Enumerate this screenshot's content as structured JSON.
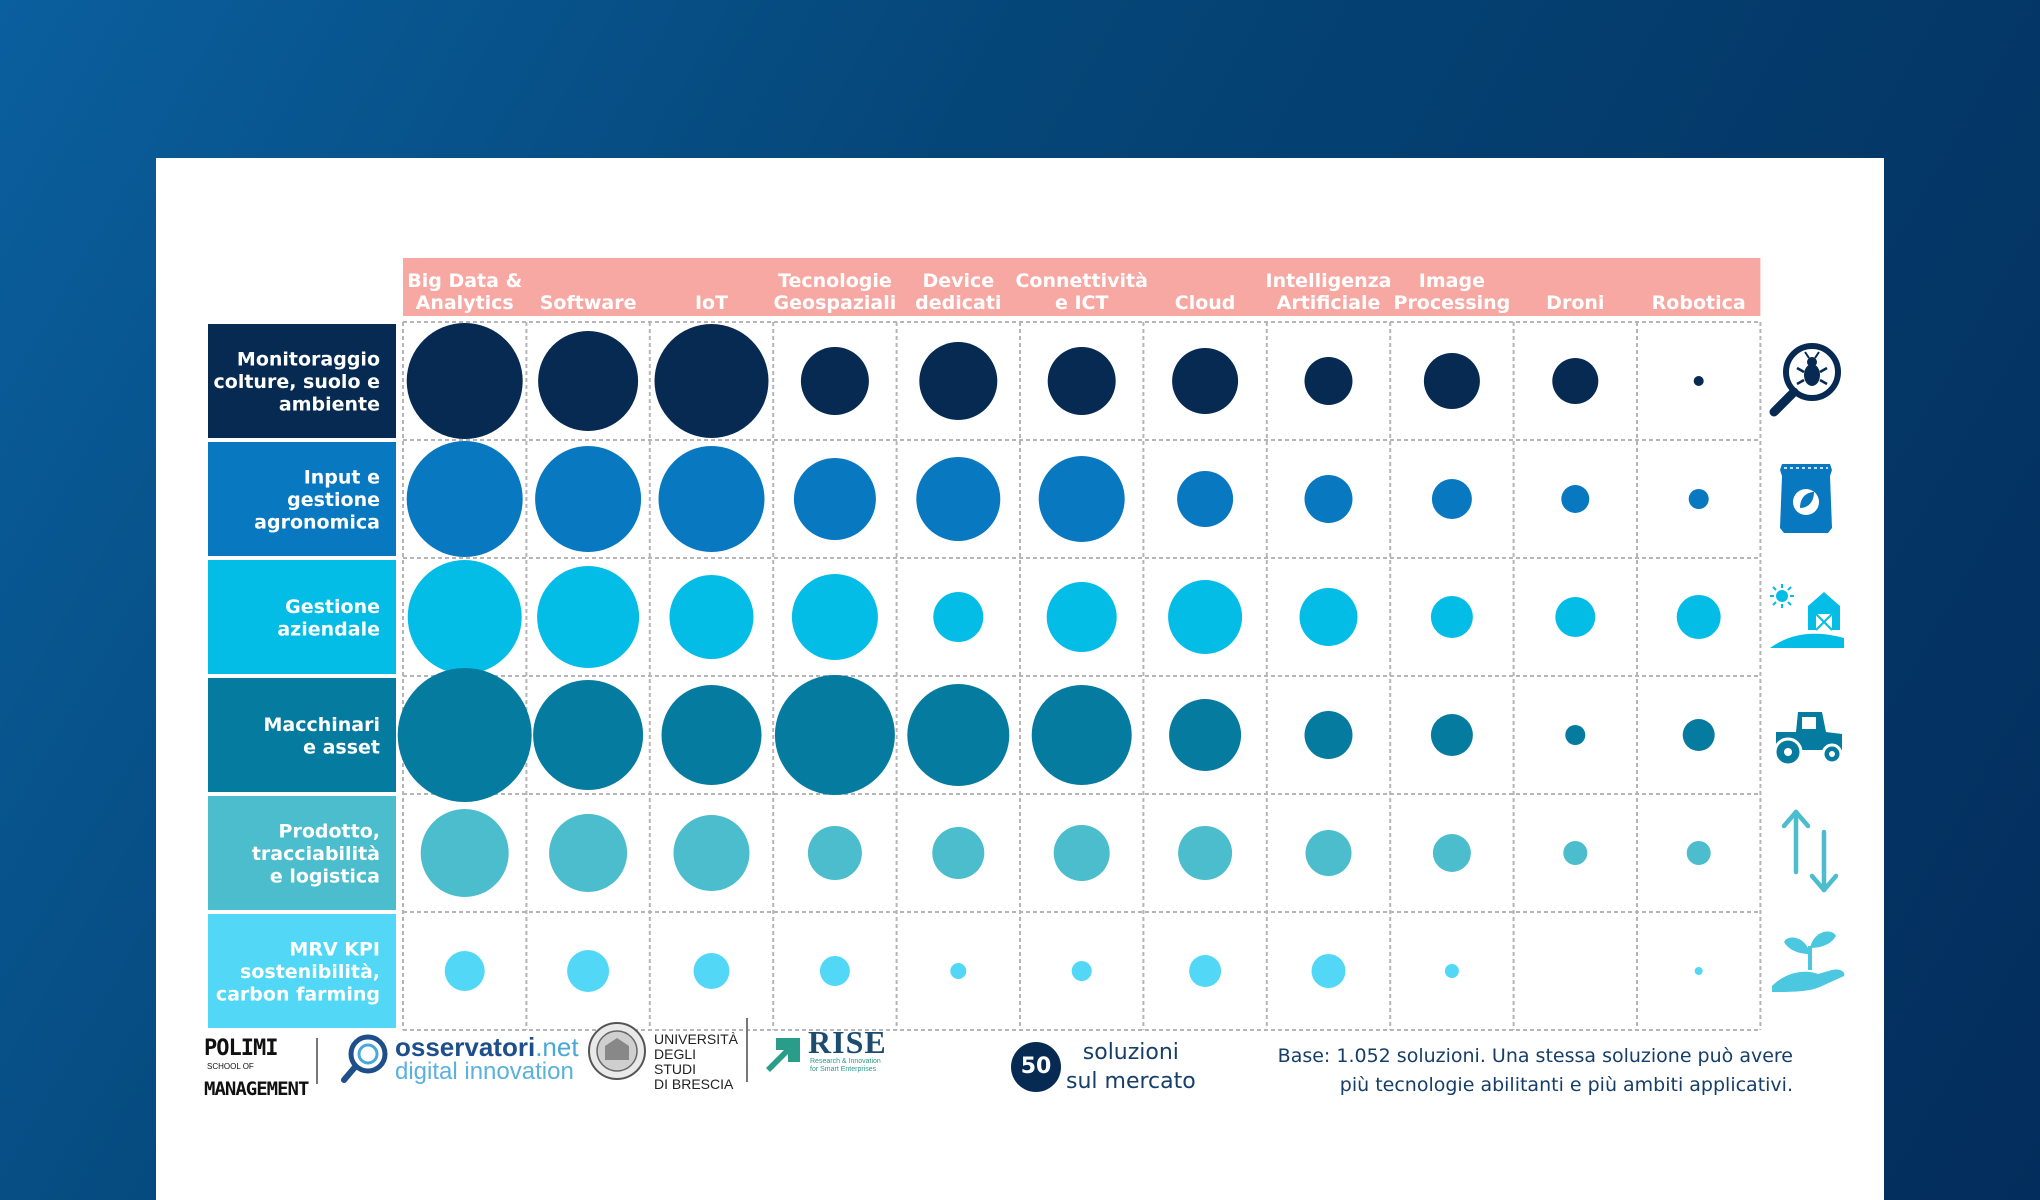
{
  "chart_data": {
    "type": "bubble-matrix",
    "title": "",
    "columns": [
      "Big Data & Analytics",
      "Software",
      "IoT",
      "Tecnologie Geospaziali",
      "Device dedicati",
      "Connettività e ICT",
      "Cloud",
      "Intelligenza Artificiale",
      "Image Processing",
      "Droni",
      "Robotica"
    ],
    "column_lines": [
      [
        "Big Data &",
        "Analytics"
      ],
      [
        "Software"
      ],
      [
        "IoT"
      ],
      [
        "Tecnologie",
        "Geospaziali"
      ],
      [
        "Device",
        "dedicati"
      ],
      [
        "Connettività",
        "e ICT"
      ],
      [
        "Cloud"
      ],
      [
        "Intelligenza",
        "Artificiale"
      ],
      [
        "Image",
        "Processing"
      ],
      [
        "Droni"
      ],
      [
        "Robotica"
      ]
    ],
    "rows": [
      {
        "name": "Monitoraggio colture, suolo e ambiente",
        "lines": [
          "Monitoraggio",
          "colture, suolo e",
          "ambiente"
        ],
        "color": "#062a52",
        "icon": "bug-magnifier-icon",
        "values": [
          58,
          50,
          57,
          34,
          39,
          34,
          33,
          24,
          28,
          23,
          5
        ]
      },
      {
        "name": "Input e gestione agronomica",
        "lines": [
          "Input e",
          "gestione",
          "agronomica"
        ],
        "color": "#0878c0",
        "icon": "fertilizer-bag-icon",
        "values": [
          58,
          53,
          53,
          41,
          42,
          43,
          28,
          24,
          20,
          14,
          10
        ]
      },
      {
        "name": "Gestione aziendale",
        "lines": [
          "Gestione",
          "aziendale"
        ],
        "color": "#03bde6",
        "icon": "farm-barn-icon",
        "values": [
          57,
          51,
          42,
          43,
          25,
          35,
          37,
          29,
          21,
          20,
          22
        ]
      },
      {
        "name": "Macchinari e asset",
        "lines": [
          "Macchinari",
          "e asset"
        ],
        "color": "#067ba0",
        "icon": "tractor-icon",
        "values": [
          67,
          55,
          50,
          60,
          51,
          50,
          36,
          24,
          21,
          10,
          16
        ]
      },
      {
        "name": "Prodotto, tracciabilità e logistica",
        "lines": [
          "Prodotto,",
          "tracciabilità",
          "e logistica"
        ],
        "color": "#4bbdcc",
        "icon": "up-down-arrows-icon",
        "values": [
          44,
          39,
          38,
          27,
          26,
          28,
          27,
          23,
          19,
          12,
          12
        ]
      },
      {
        "name": "MRV KPI sostenibilità, carbon farming",
        "lines": [
          "MRV KPI",
          "sostenibilità,",
          "carbon farming"
        ],
        "color": "#52d8f6",
        "icon": "plant-hand-icon",
        "values": [
          20,
          21,
          18,
          15,
          8,
          10,
          16,
          17,
          7,
          0,
          4
        ]
      }
    ],
    "header_color": "#f7a8a2",
    "value_note": "bubble diameters (relative frequency, estimated)"
  },
  "logos": {
    "polimi": [
      "POLIMI",
      "SCHOOL OF",
      "MANAGEMENT"
    ],
    "osservatori": {
      "name": "osservatori",
      "suffix": ".net",
      "sub": "digital innovation"
    },
    "unibs": [
      "UNIVERSITÀ",
      "DEGLI STUDI",
      "DI BRESCIA"
    ],
    "rise": {
      "name": "RISE",
      "sub": [
        "Research & Innovation",
        "for Smart Enterprises"
      ]
    }
  },
  "summary": {
    "count": "50",
    "label_line1": "soluzioni",
    "label_line2": "sul mercato"
  },
  "footnote": {
    "line1": "Base: 1.052 soluzioni. Una stessa soluzione può avere",
    "line2": "più tecnologie abilitanti e più ambiti applicativi."
  },
  "colors": {
    "background_dark": "#032d5c",
    "background_light": "#0a5f9e",
    "text_dark": "#153e69"
  }
}
